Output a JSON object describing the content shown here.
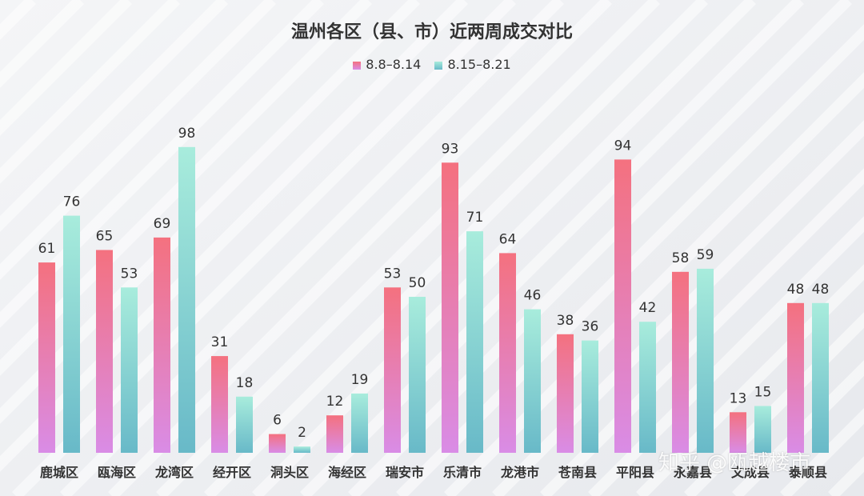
{
  "chart_data": {
    "type": "bar",
    "title": "温州各区（县、市）近两周成交对比",
    "categories": [
      "鹿城区",
      "瓯海区",
      "龙湾区",
      "经开区",
      "洞头区",
      "海经区",
      "瑞安市",
      "乐清市",
      "龙港市",
      "苍南县",
      "平阳县",
      "永嘉县",
      "文成县",
      "泰顺县"
    ],
    "series": [
      {
        "name": "8.8–8.14",
        "values": [
          61,
          65,
          69,
          31,
          6,
          12,
          53,
          93,
          64,
          38,
          94,
          58,
          13,
          48
        ],
        "color_top": "#f4717f",
        "color_bottom": "#d98ce6"
      },
      {
        "name": "8.15–8.21",
        "values": [
          76,
          53,
          98,
          18,
          2,
          19,
          50,
          71,
          46,
          36,
          42,
          59,
          15,
          48
        ],
        "color_top": "#a8ecdc",
        "color_bottom": "#68b9c8"
      }
    ],
    "ylim": [
      0,
      100
    ],
    "grid": false,
    "legend_position": "top-center",
    "data_labels": true
  },
  "watermark": "知乎 @瓯越楼市"
}
